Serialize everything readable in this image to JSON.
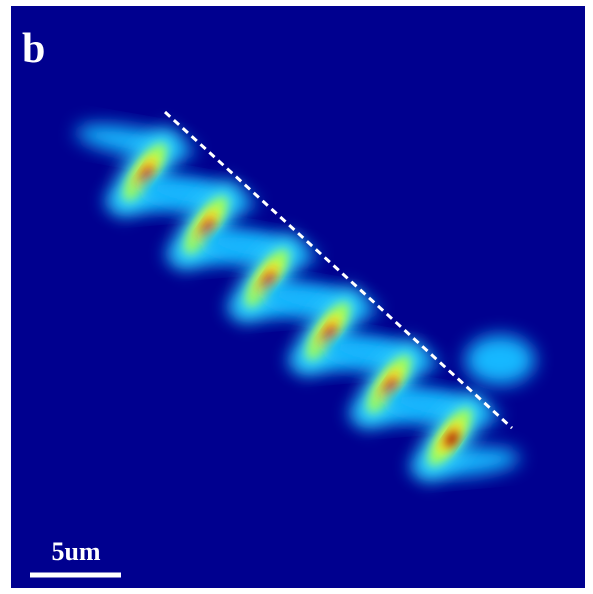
{
  "panel_label": "b",
  "scale_bar": {
    "label": "5um"
  }
}
